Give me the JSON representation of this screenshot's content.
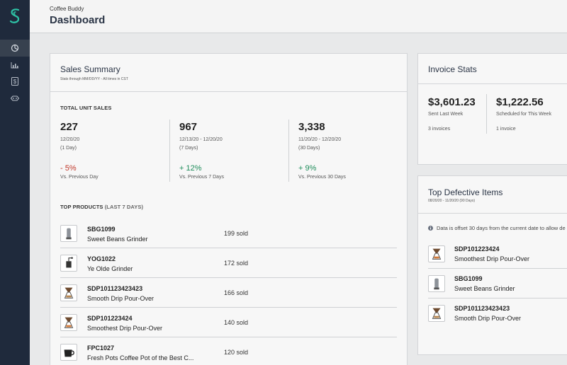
{
  "app": {
    "brand": "Coffee Buddy",
    "title": "Dashboard"
  },
  "sidebar": {
    "items": [
      {
        "icon": "pie-chart-icon",
        "active": true
      },
      {
        "icon": "bar-chart-icon",
        "active": false
      },
      {
        "icon": "dollar-icon",
        "active": false
      },
      {
        "icon": "tag-icon",
        "active": false
      }
    ],
    "colors": {
      "bg": "#1f2a3c",
      "logo": "#2ec4a7"
    }
  },
  "sales": {
    "title": "Sales Summary",
    "subtitle": "Stats through MM/DD/YY - All times in CST",
    "unit_sales_label": "TOTAL UNIT SALES",
    "stats": [
      {
        "value": "227",
        "range": "12/20/20",
        "span": "(1 Day)",
        "change": "- 5%",
        "direction": "down",
        "compare": "Vs. Previous Day"
      },
      {
        "value": "967",
        "range": "12/13/20 - 12/20/20",
        "span": "(7 Days)",
        "change": "+ 12%",
        "direction": "up",
        "compare": "Vs. Previous 7 Days"
      },
      {
        "value": "3,338",
        "range": "11/20/20 - 12/20/20",
        "span": "(30 Days)",
        "change": "+ 9%",
        "direction": "up",
        "compare": "Vs. Previous 30 Days"
      }
    ],
    "top_products_label": "TOP PRODUCTS",
    "top_products_period": "(LAST 7 DAYS)",
    "products": [
      {
        "sku": "SBG1099",
        "name": "Sweet Beans Grinder",
        "sold": "199 sold",
        "icon": "grinder-icon"
      },
      {
        "sku": "YOG1022",
        "name": "Ye Olde Grinder",
        "sold": "172 sold",
        "icon": "manual-grinder-icon"
      },
      {
        "sku": "SDP101123423423",
        "name": "Smooth Drip Pour-Over",
        "sold": "166 sold",
        "icon": "pour-over-icon"
      },
      {
        "sku": "SDP101223424",
        "name": "Smoothest Drip Pour-Over",
        "sold": "140 sold",
        "icon": "pour-over-icon"
      },
      {
        "sku": "FPC1027",
        "name": "Fresh Pots Coffee Pot of the Best C...",
        "sold": "120 sold",
        "icon": "coffee-pot-icon"
      }
    ]
  },
  "invoice": {
    "title": "Invoice Stats",
    "stats": [
      {
        "value": "$3,601.23",
        "label": "Sent Last Week",
        "count": "3 invoices"
      },
      {
        "value": "$1,222.56",
        "label": "Scheduled for This Week",
        "count": "1 invoice"
      }
    ]
  },
  "defective": {
    "title": "Top Defective Items",
    "subtitle": "08/20/20 - 11/20/20 (90 Days)",
    "info": "Data is offset 30 days from the current date to allow de",
    "items": [
      {
        "sku": "SDP101223424",
        "name": "Smoothest Drip Pour-Over",
        "icon": "pour-over-icon"
      },
      {
        "sku": "SBG1099",
        "name": "Sweet Beans Grinder",
        "icon": "grinder-icon"
      },
      {
        "sku": "SDP101123423423",
        "name": "Smooth Drip Pour-Over",
        "icon": "pour-over-icon"
      }
    ]
  }
}
